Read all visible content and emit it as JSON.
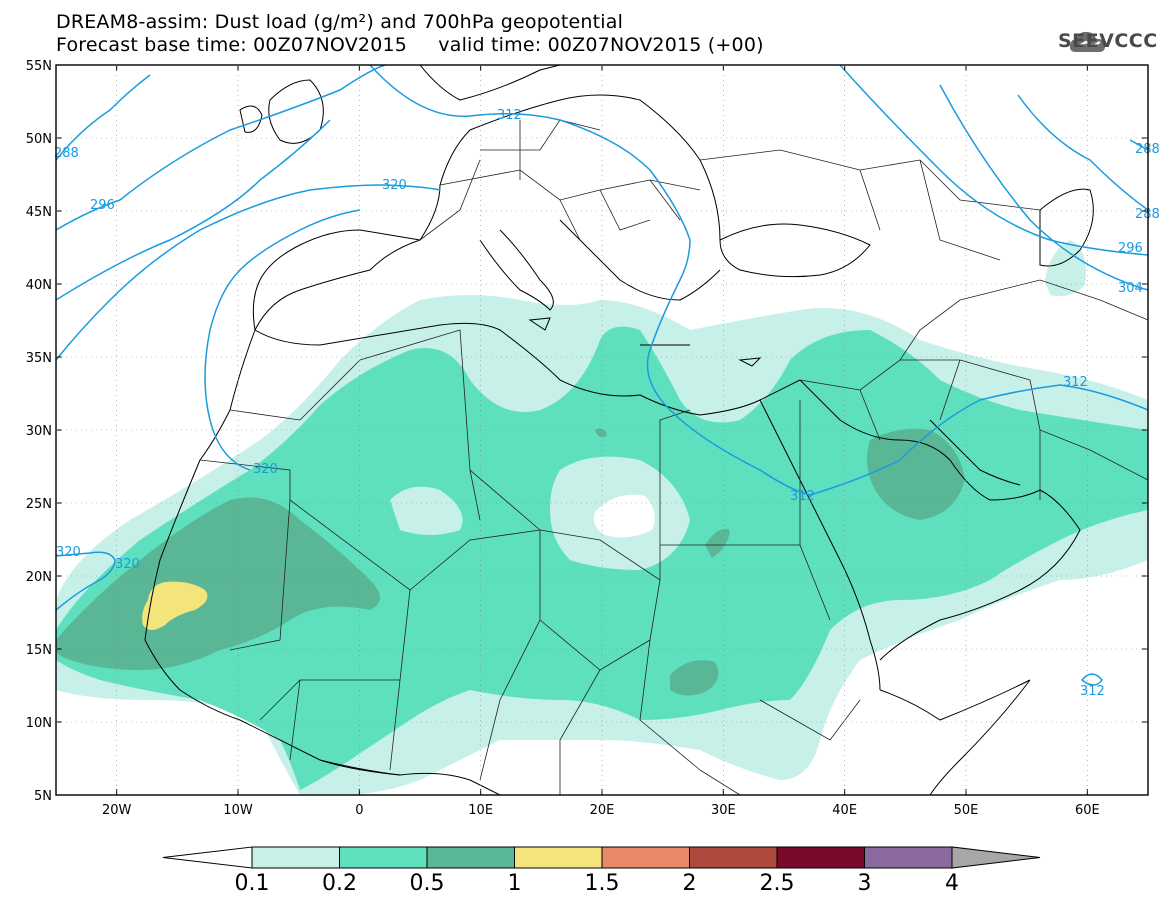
{
  "title": {
    "line1": "DREAM8-assim: Dust load (g/m²) and 700hPa geopotential",
    "line2": "Forecast base time: 00Z07NOV2015     valid time: 00Z07NOV2015 (+00)"
  },
  "logo": {
    "text": "SEEVCCC",
    "icon": "cloud-icon"
  },
  "map": {
    "lon_range": [
      -25,
      65
    ],
    "lat_range": [
      5,
      55
    ],
    "x_ticks": [
      "20W",
      "10W",
      "0",
      "10E",
      "20E",
      "30E",
      "40E",
      "50E",
      "60E"
    ],
    "y_ticks": [
      "55N",
      "50N",
      "45N",
      "40N",
      "35N",
      "30N",
      "25N",
      "20N",
      "15N",
      "10N",
      "5N"
    ],
    "contour_labels": [
      "312",
      "288",
      "296",
      "320",
      "320",
      "320",
      "312",
      "312",
      "296",
      "304",
      "288",
      "288",
      "312"
    ],
    "colors": {
      "contour": "#1a9be0",
      "border": "#000000"
    }
  },
  "colorbar": {
    "labels": [
      "0.1",
      "0.2",
      "0.5",
      "1",
      "1.5",
      "2",
      "2.5",
      "3",
      "4"
    ],
    "colors": [
      "#c6f0e8",
      "#5ee0be",
      "#5ab796",
      "#f3e47c",
      "#e8896a",
      "#ad4a3d",
      "#7a0a2a",
      "#8b6aa0",
      "#a7a7a7"
    ]
  }
}
